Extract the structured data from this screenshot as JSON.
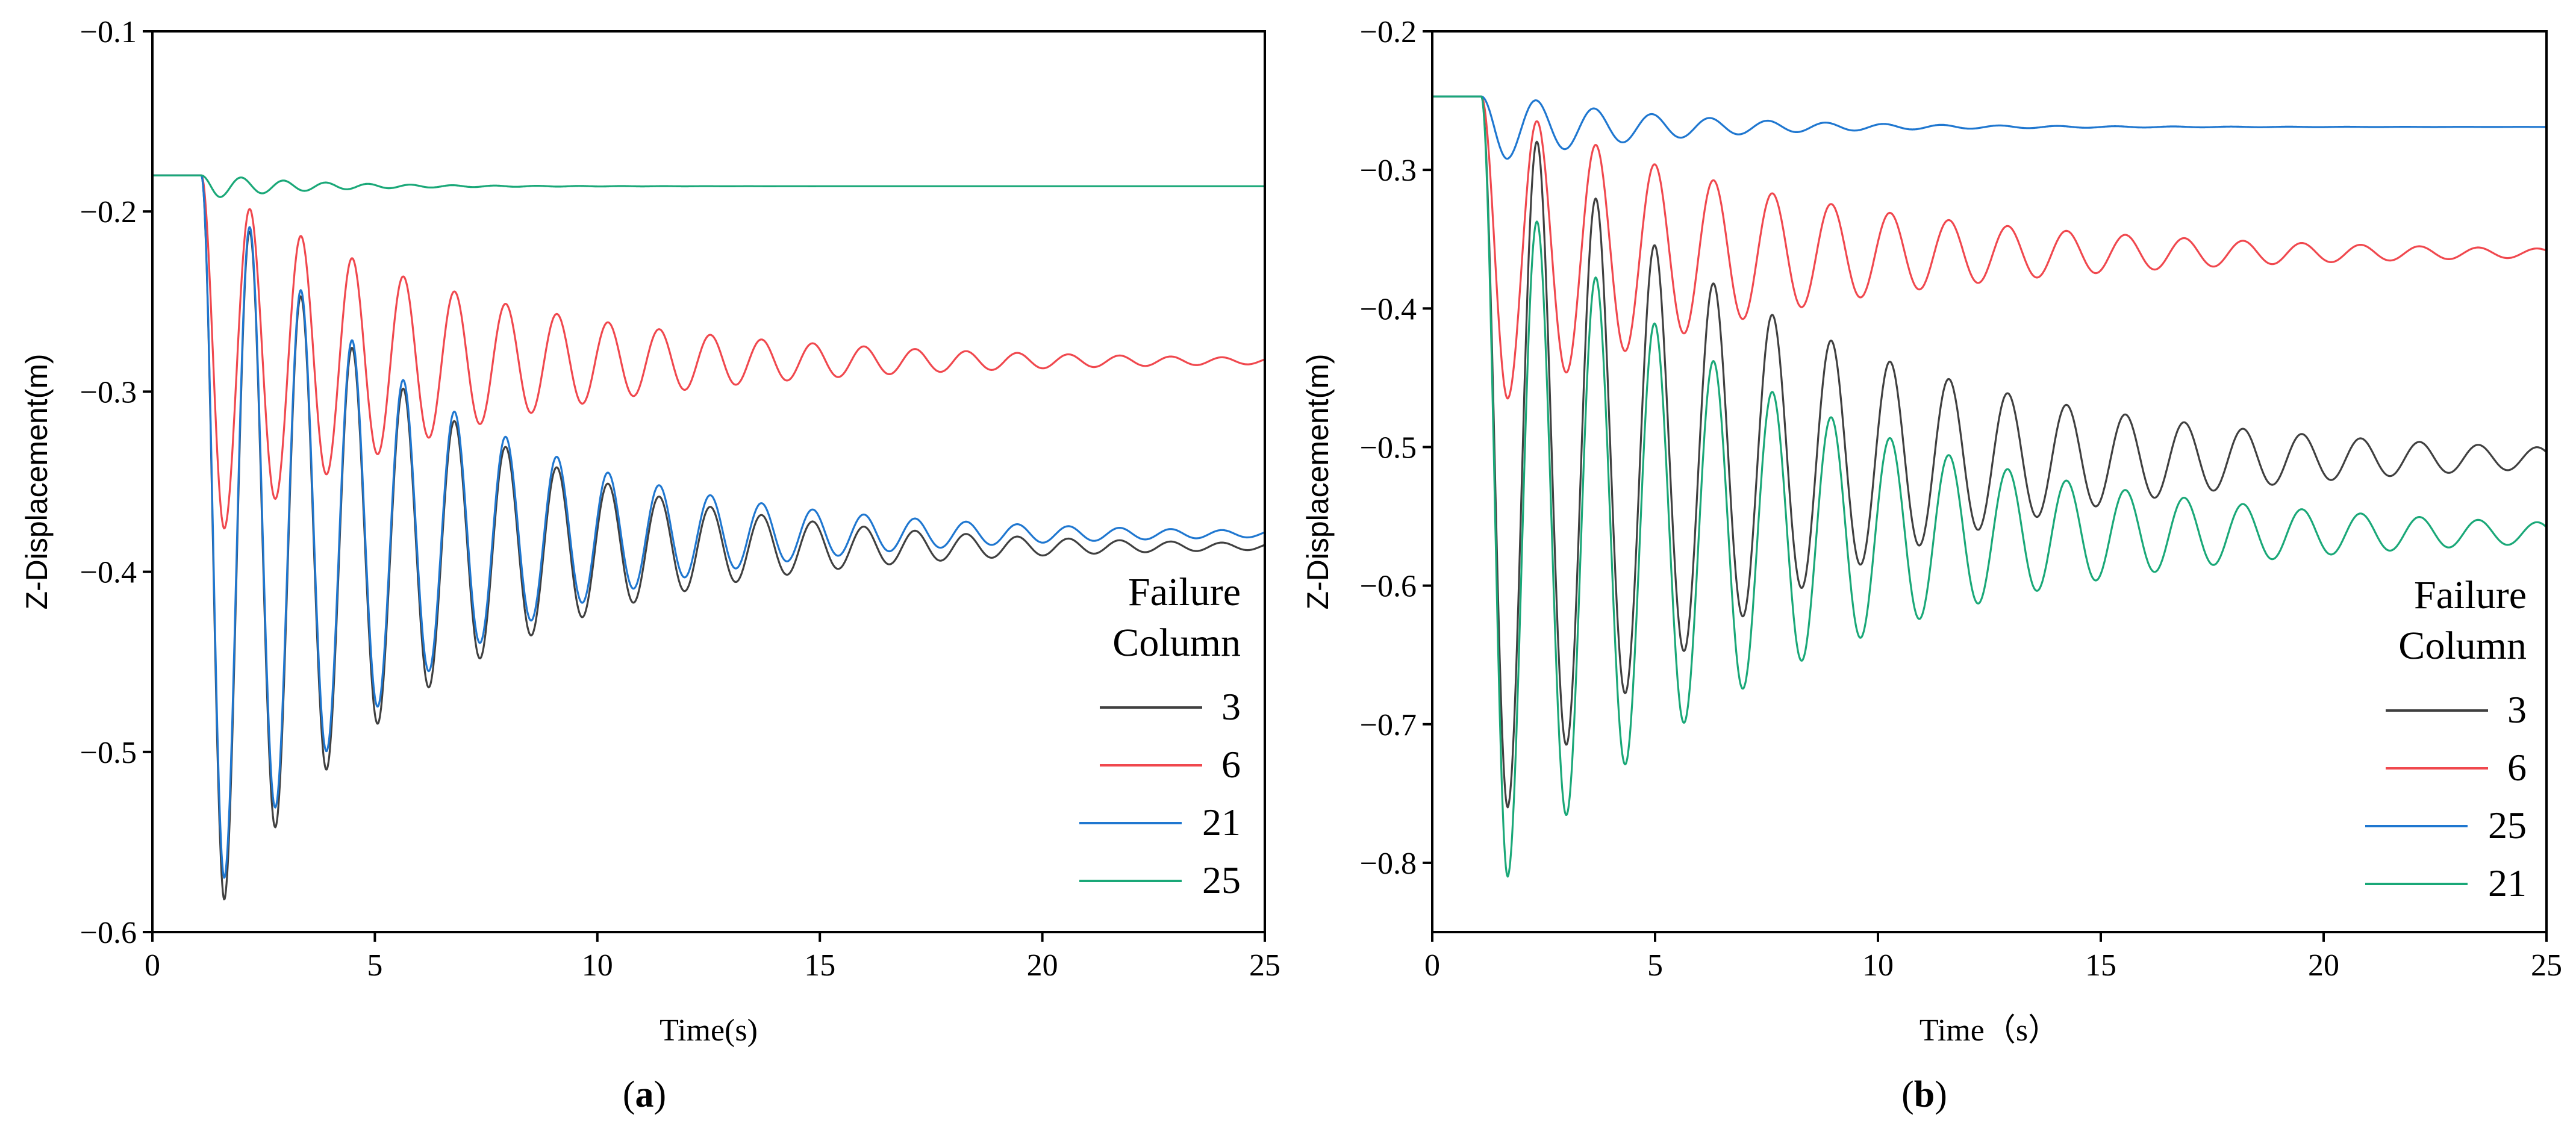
{
  "chart_data": [
    {
      "type": "line",
      "caption": "(a)",
      "caption_letter": "a",
      "xlabel": "Time(s)",
      "ylabel": "Z-Displacement(m)",
      "xlim": [
        0,
        25
      ],
      "ylim": [
        -0.6,
        -0.1
      ],
      "xticks": [
        0,
        5,
        10,
        15,
        20,
        25
      ],
      "xtick_labels": [
        "0",
        "5",
        "10",
        "15",
        "20",
        "25"
      ],
      "yticks": [
        -0.6,
        -0.5,
        -0.4,
        -0.3,
        -0.2,
        -0.1
      ],
      "ytick_labels": [
        "−0.6",
        "−0.5",
        "−0.4",
        "−0.3",
        "−0.2",
        "−0.1"
      ],
      "legend": {
        "title": [
          "Failure",
          "Column"
        ],
        "placement": "bottom-right"
      },
      "series": [
        {
          "name": "3",
          "color": "#404040",
          "initial": -0.18,
          "t0": 1.1,
          "final": -0.386,
          "first_peak": -0.582,
          "period": 1.15,
          "damping": 0.2
        },
        {
          "name": "6",
          "color": "#f0484e",
          "initial": -0.18,
          "t0": 1.1,
          "final": -0.283,
          "first_peak": -0.376,
          "period": 1.15,
          "damping": 0.17
        },
        {
          "name": "21",
          "color": "#1f77d0",
          "initial": -0.18,
          "t0": 1.1,
          "final": -0.379,
          "first_peak": -0.57,
          "period": 1.15,
          "damping": 0.2
        },
        {
          "name": "25",
          "color": "#1aa878",
          "initial": -0.18,
          "t0": 1.1,
          "final": -0.186,
          "first_peak": -0.192,
          "period": 0.95,
          "damping": 0.45
        }
      ]
    },
    {
      "type": "line",
      "caption": "(b)",
      "caption_letter": "b",
      "xlabel": "Time（s）",
      "ylabel": "Z-Displacement(m)",
      "xlim": [
        0,
        25
      ],
      "ylim": [
        -0.85,
        -0.2
      ],
      "xticks": [
        0,
        5,
        10,
        15,
        20,
        25
      ],
      "xtick_labels": [
        "0",
        "5",
        "10",
        "15",
        "20",
        "25"
      ],
      "yticks": [
        -0.8,
        -0.7,
        -0.6,
        -0.5,
        -0.4,
        -0.3,
        -0.2
      ],
      "ytick_labels": [
        "−0.8",
        "−0.7",
        "−0.6",
        "−0.5",
        "−0.4",
        "−0.3",
        "−0.2"
      ],
      "legend": {
        "title": [
          "Failure",
          "Column"
        ],
        "placement": "bottom-right"
      },
      "series": [
        {
          "name": "3",
          "color": "#404040",
          "initial": -0.247,
          "t0": 1.1,
          "final": -0.508,
          "first_peak": -0.76,
          "period": 1.32,
          "damping": 0.15
        },
        {
          "name": "6",
          "color": "#f0484e",
          "initial": -0.247,
          "t0": 1.1,
          "final": -0.36,
          "first_peak": -0.465,
          "period": 1.32,
          "damping": 0.15
        },
        {
          "name": "25",
          "color": "#1f77d0",
          "initial": -0.247,
          "t0": 1.1,
          "final": -0.269,
          "first_peak": -0.292,
          "period": 1.3,
          "damping": 0.28
        },
        {
          "name": "21",
          "color": "#1aa878",
          "initial": -0.247,
          "t0": 1.1,
          "final": -0.562,
          "first_peak": -0.81,
          "period": 1.32,
          "damping": 0.15
        }
      ]
    }
  ]
}
